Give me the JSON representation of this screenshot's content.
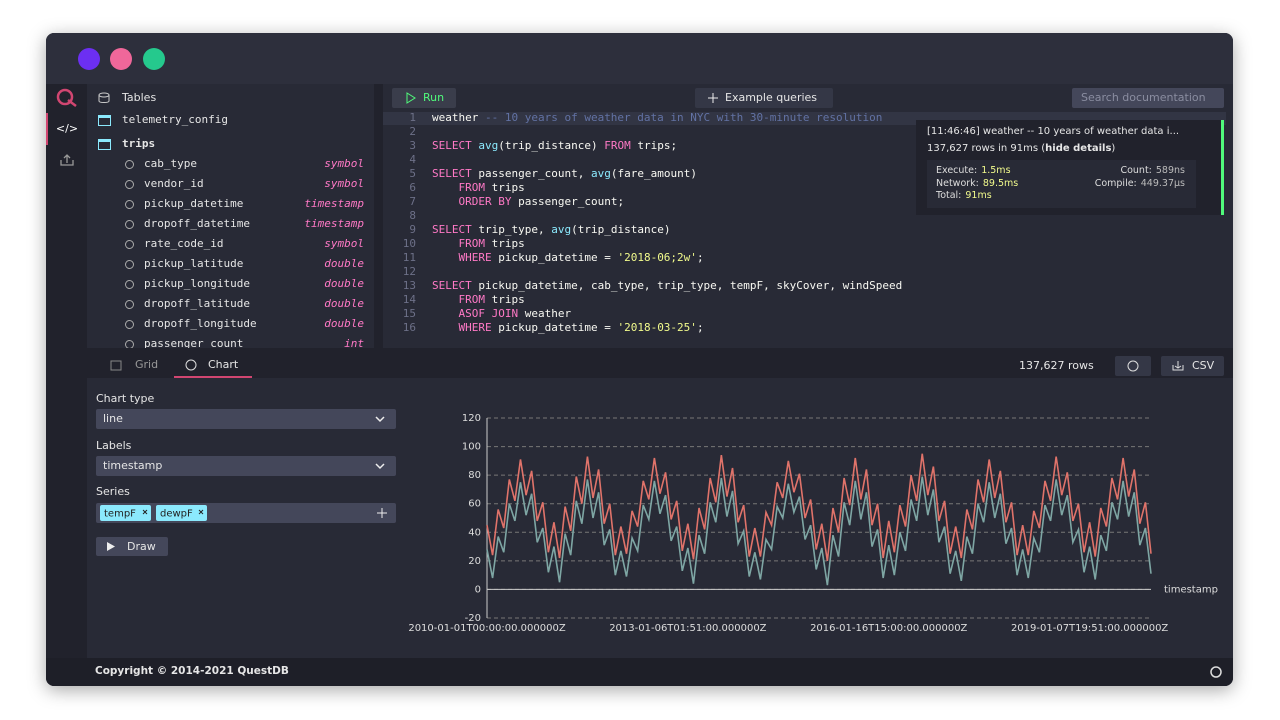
{
  "sidebar": {
    "tables_title": "Tables"
  },
  "tables": [
    {
      "name": "telemetry_config"
    },
    {
      "name": "trips",
      "columns": [
        {
          "name": "cab_type",
          "type": "symbol"
        },
        {
          "name": "vendor_id",
          "type": "symbol"
        },
        {
          "name": "pickup_datetime",
          "type": "timestamp"
        },
        {
          "name": "dropoff_datetime",
          "type": "timestamp"
        },
        {
          "name": "rate_code_id",
          "type": "symbol"
        },
        {
          "name": "pickup_latitude",
          "type": "double"
        },
        {
          "name": "pickup_longitude",
          "type": "double"
        },
        {
          "name": "dropoff_latitude",
          "type": "double"
        },
        {
          "name": "dropoff_longitude",
          "type": "double"
        },
        {
          "name": "passenger_count",
          "type": "int"
        }
      ]
    }
  ],
  "toolbar": {
    "run": "Run",
    "examples": "Example queries",
    "search_placeholder": "Search documentation"
  },
  "editor": {
    "lines": [
      {
        "number": 1,
        "parts": [
          {
            "text": "weather",
            "style": "plain"
          },
          {
            "text": " -- 10 years of weather data in NYC with 30-minute resolution",
            "style": "comment"
          }
        ]
      },
      {
        "number": 2,
        "parts": []
      },
      {
        "number": 3,
        "parts": [
          {
            "text": "SELECT",
            "style": "kw"
          },
          {
            "text": " ",
            "style": "plain"
          },
          {
            "text": "avg",
            "style": "fn"
          },
          {
            "text": "(trip_distance) ",
            "style": "plain"
          },
          {
            "text": "FROM",
            "style": "kw"
          },
          {
            "text": " trips;",
            "style": "plain"
          }
        ]
      },
      {
        "number": 4,
        "parts": []
      },
      {
        "number": 5,
        "parts": [
          {
            "text": "SELECT",
            "style": "kw"
          },
          {
            "text": " passenger_count, ",
            "style": "plain"
          },
          {
            "text": "avg",
            "style": "fn"
          },
          {
            "text": "(fare_amount)",
            "style": "plain"
          }
        ]
      },
      {
        "number": 6,
        "parts": [
          {
            "text": "    FROM",
            "style": "kw"
          },
          {
            "text": " trips",
            "style": "plain"
          }
        ]
      },
      {
        "number": 7,
        "parts": [
          {
            "text": "    ORDER BY",
            "style": "kw"
          },
          {
            "text": " passenger_count;",
            "style": "plain"
          }
        ]
      },
      {
        "number": 8,
        "parts": []
      },
      {
        "number": 9,
        "parts": [
          {
            "text": "SELECT",
            "style": "kw"
          },
          {
            "text": " trip_type, ",
            "style": "plain"
          },
          {
            "text": "avg",
            "style": "fn"
          },
          {
            "text": "(trip_distance)",
            "style": "plain"
          }
        ]
      },
      {
        "number": 10,
        "parts": [
          {
            "text": "    FROM",
            "style": "kw"
          },
          {
            "text": " trips",
            "style": "plain"
          }
        ]
      },
      {
        "number": 11,
        "parts": [
          {
            "text": "    WHERE",
            "style": "kw"
          },
          {
            "text": " pickup_datetime = ",
            "style": "plain"
          },
          {
            "text": "'2018-06;2w'",
            "style": "str"
          },
          {
            "text": ";",
            "style": "plain"
          }
        ]
      },
      {
        "number": 12,
        "parts": []
      },
      {
        "number": 13,
        "parts": [
          {
            "text": "SELECT",
            "style": "kw"
          },
          {
            "text": " pickup_datetime, cab_type, trip_type, tempF, skyCover, windSpeed",
            "style": "plain"
          }
        ]
      },
      {
        "number": 14,
        "parts": [
          {
            "text": "    FROM",
            "style": "kw"
          },
          {
            "text": " trips",
            "style": "plain"
          }
        ]
      },
      {
        "number": 15,
        "parts": [
          {
            "text": "    ASOF JOIN",
            "style": "kw"
          },
          {
            "text": " weather",
            "style": "plain"
          }
        ]
      },
      {
        "number": 16,
        "parts": [
          {
            "text": "    WHERE",
            "style": "kw"
          },
          {
            "text": " pickup_datetime = ",
            "style": "plain"
          },
          {
            "text": "'2018-03-25'",
            "style": "str"
          },
          {
            "text": ";",
            "style": "plain"
          }
        ]
      }
    ]
  },
  "notification": {
    "title": "[11:46:46] weather -- 10 years of weather data i...",
    "summary": "137,627 rows in 91ms (",
    "link": "hide details",
    "summary_end": ")",
    "metrics": [
      {
        "label": "Execute:",
        "value": "1.5ms",
        "color": "#f1fa8c"
      },
      {
        "label": "Count:",
        "value": "589ns",
        "color": "#bbbbbb"
      },
      {
        "label": "Network:",
        "value": "89.5ms",
        "color": "#f1fa8c"
      },
      {
        "label": "Compile:",
        "value": "449.37μs",
        "color": "#bbbbbb"
      },
      {
        "label": "Total:",
        "value": "91ms",
        "color": "#f1fa8c"
      }
    ]
  },
  "results": {
    "tabs": [
      "Grid",
      "Chart"
    ],
    "row_count": "137,627 rows",
    "csv": "CSV"
  },
  "chart_settings": {
    "chart_type_label": "Chart type",
    "chart_type": "line",
    "labels_label": "Labels",
    "labels": "timestamp",
    "series_label": "Series",
    "draw": "Draw"
  },
  "footer": {
    "copyright": "Copyright © 2014-2021 QuestDB"
  },
  "chart_data": {
    "type": "line",
    "x_label": "timestamp",
    "grid": true,
    "ylim": [
      -20,
      120
    ],
    "yticks": [
      -20,
      0,
      20,
      40,
      60,
      80,
      100,
      120
    ],
    "categories": [
      "2010-01-01T00:00:00.000000Z",
      null,
      null,
      null,
      null,
      null,
      null,
      null,
      null,
      null,
      null,
      null,
      null,
      null,
      null,
      null,
      null,
      null,
      null,
      null,
      null,
      null,
      null,
      null,
      null,
      null,
      null,
      null,
      null,
      null,
      null,
      null,
      null,
      null,
      null,
      null,
      "2013-01-06T01:51:00.000000Z",
      null,
      null,
      null,
      null,
      null,
      null,
      null,
      null,
      null,
      null,
      null,
      null,
      null,
      null,
      null,
      null,
      null,
      null,
      null,
      null,
      null,
      null,
      null,
      null,
      null,
      null,
      null,
      null,
      null,
      null,
      null,
      null,
      null,
      null,
      null,
      "2016-01-16T15:00:00.000000Z",
      null,
      null,
      null,
      null,
      null,
      null,
      null,
      null,
      null,
      null,
      null,
      null,
      null,
      null,
      null,
      null,
      null,
      null,
      null,
      null,
      null,
      null,
      null,
      null,
      null,
      null,
      null,
      null,
      null,
      null,
      null,
      null,
      null,
      null,
      null,
      "2019-01-07T19:51:00.000000Z",
      null,
      null,
      null,
      null,
      null,
      null,
      null,
      null,
      null,
      null,
      null
    ],
    "series": [
      {
        "name": "tempF",
        "color": "#e0736a",
        "values": [
          45,
          24,
          56,
          43,
          77,
          62,
          91,
          66,
          83,
          48,
          61,
          26,
          47,
          22,
          58,
          41,
          79,
          60,
          93,
          64,
          84,
          46,
          60,
          24,
          44,
          25,
          55,
          44,
          76,
          63,
          92,
          67,
          82,
          49,
          62,
          27,
          46,
          21,
          57,
          42,
          78,
          61,
          94,
          65,
          85,
          47,
          59,
          23,
          43,
          23,
          54,
          45,
          75,
          64,
          90,
          68,
          81,
          50,
          63,
          28,
          46,
          20,
          57,
          40,
          78,
          59,
          92,
          63,
          84,
          45,
          60,
          22,
          48,
          26,
          59,
          44,
          80,
          62,
          95,
          66,
          86,
          48,
          62,
          25,
          44,
          22,
          56,
          42,
          77,
          61,
          91,
          64,
          83,
          47,
          61,
          24,
          45,
          24,
          55,
          43,
          76,
          62,
          93,
          66,
          82,
          48,
          60,
          26,
          47,
          23,
          57,
          44,
          78,
          63,
          92,
          65,
          84,
          46,
          61,
          25
        ]
      },
      {
        "name": "dewpF",
        "color": "#7ea6a4",
        "values": [
          28,
          8,
          37,
          26,
          60,
          48,
          75,
          52,
          67,
          33,
          43,
          12,
          30,
          5,
          39,
          24,
          62,
          46,
          77,
          50,
          68,
          31,
          42,
          10,
          27,
          9,
          36,
          27,
          59,
          49,
          76,
          53,
          66,
          34,
          44,
          13,
          29,
          4,
          38,
          25,
          61,
          47,
          78,
          51,
          69,
          32,
          41,
          9,
          26,
          7,
          35,
          28,
          58,
          50,
          74,
          54,
          65,
          35,
          45,
          14,
          29,
          3,
          38,
          23,
          61,
          45,
          76,
          49,
          68,
          30,
          42,
          8,
          31,
          10,
          40,
          27,
          63,
          48,
          79,
          52,
          70,
          33,
          44,
          11,
          27,
          6,
          37,
          25,
          60,
          47,
          75,
          50,
          67,
          32,
          43,
          10,
          28,
          8,
          36,
          26,
          59,
          48,
          77,
          52,
          66,
          33,
          42,
          12,
          30,
          7,
          38,
          27,
          61,
          49,
          76,
          51,
          68,
          31,
          43,
          11
        ]
      }
    ]
  }
}
